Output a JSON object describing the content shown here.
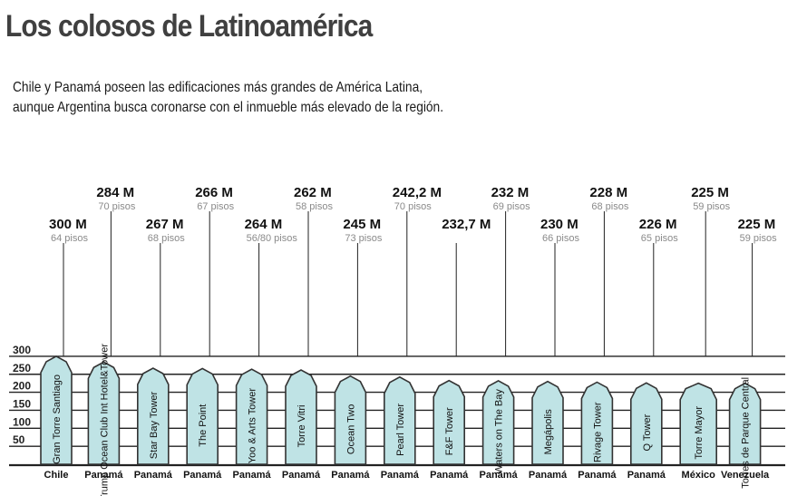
{
  "title": "Los colosos de Latinoamérica",
  "subtitle": [
    "Chile y Panamá poseen las edificaciones más grandes de América Latina,",
    "aunque Argentina busca coronarse con el inmueble más elevado de la región."
  ],
  "colors": {
    "building_fill": "#bfe3e5",
    "building_stroke": "#333333",
    "grid": "#222222",
    "height_label": "#111111",
    "floors_label": "#8a8a8a",
    "country_label": "#111111"
  },
  "chart_data": {
    "type": "bar",
    "yticks": [
      50,
      100,
      150,
      200,
      250,
      300
    ],
    "ylim": [
      0,
      300
    ],
    "grid": true,
    "buildings": [
      {
        "name": "Gran Torre Santiago",
        "height": 300,
        "height_label": "300 M",
        "floors": "64 pisos",
        "country": "Chile",
        "label_row": "low"
      },
      {
        "name": "Trump Ocean Club Int Hotel&Tower",
        "height": 284,
        "height_label": "284 M",
        "floors": "70 pisos",
        "country": "Panamá",
        "label_row": "high"
      },
      {
        "name": "Star Bay Tower",
        "height": 267,
        "height_label": "267 M",
        "floors": "68 pisos",
        "country": "Panamá",
        "label_row": "low"
      },
      {
        "name": "The Point",
        "height": 266,
        "height_label": "266 M",
        "floors": "67 pisos",
        "country": "Panamá",
        "label_row": "high"
      },
      {
        "name": "Yoo & Arts Tower",
        "height": 264,
        "height_label": "264 M",
        "floors": "56/80 pisos",
        "country": "Panamá",
        "label_row": "low"
      },
      {
        "name": "Torre Vitri",
        "height": 262,
        "height_label": "262 M",
        "floors": "58 pisos",
        "country": "Panamá",
        "label_row": "high"
      },
      {
        "name": "Ocean Two",
        "height": 245,
        "height_label": "245 M",
        "floors": "73 pisos",
        "country": "Panamá",
        "label_row": "low"
      },
      {
        "name": "Pearl Tower",
        "height": 242.2,
        "height_label": "242,2 M",
        "floors": "70 pisos",
        "country": "Panamá",
        "label_row": "high"
      },
      {
        "name": "F&F Tower",
        "height": 232.7,
        "height_label": "232,7 M",
        "floors": "",
        "country": "Panamá",
        "label_row": "low"
      },
      {
        "name": "Waters on The Bay",
        "height": 232,
        "height_label": "232 M",
        "floors": "69 pisos",
        "country": "Panamá",
        "label_row": "high"
      },
      {
        "name": "Megápolis",
        "height": 230,
        "height_label": "230 M",
        "floors": "66 pisos",
        "country": "Panamá",
        "label_row": "low"
      },
      {
        "name": "Rivage Tower",
        "height": 228,
        "height_label": "228 M",
        "floors": "68 pisos",
        "country": "Panamá",
        "label_row": "high"
      },
      {
        "name": "Q Tower",
        "height": 226,
        "height_label": "226 M",
        "floors": "65 pisos",
        "country": "Panamá",
        "label_row": "low"
      },
      {
        "name": "Torre Mayor",
        "height": 225,
        "height_label": "225 M",
        "floors": "59 pisos",
        "country": "México",
        "label_row": "high"
      },
      {
        "name": "Torres de Parque Central",
        "height": 225,
        "height_label": "225 M",
        "floors": "59 pisos",
        "country": "Venezuela",
        "label_row": "low"
      }
    ]
  }
}
